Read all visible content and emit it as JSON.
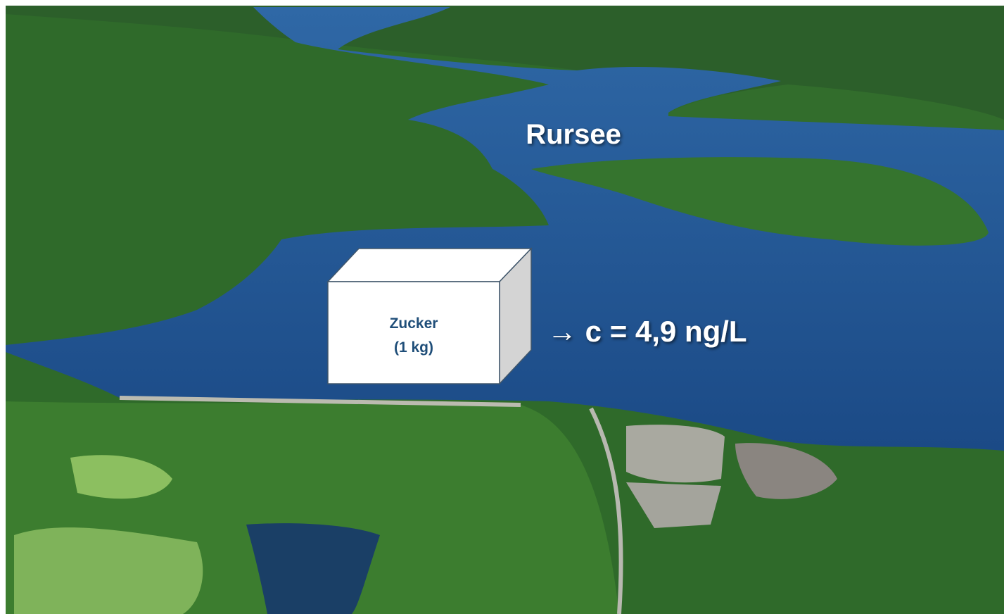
{
  "labels": {
    "lake": "Rursee",
    "box_line1": "Zucker",
    "box_line2": "(1 kg)",
    "concentration": "→ c = 4,9 ng/L"
  }
}
